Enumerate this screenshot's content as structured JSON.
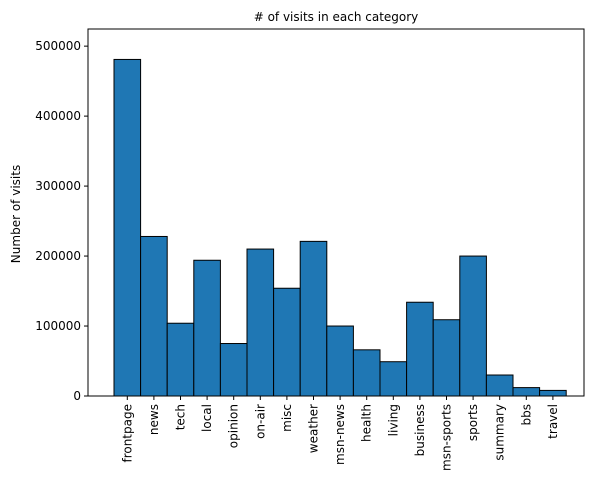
{
  "chart_data": {
    "type": "bar",
    "title": "# of visits in each category",
    "xlabel": "",
    "ylabel": "Number of visits",
    "categories": [
      "frontpage",
      "news",
      "tech",
      "local",
      "opinion",
      "on-air",
      "misc",
      "weather",
      "msn-news",
      "health",
      "living",
      "business",
      "msn-sports",
      "sports",
      "summary",
      "bbs",
      "travel"
    ],
    "values": [
      481000,
      228000,
      104000,
      194000,
      75000,
      210000,
      154000,
      221000,
      100000,
      66000,
      49000,
      134000,
      109000,
      200000,
      30000,
      12000,
      8000
    ],
    "ylim": [
      0,
      500000
    ],
    "yticks": [
      0,
      100000,
      200000,
      300000,
      400000,
      500000
    ],
    "grid": false,
    "bar_color": "#1f77b4",
    "edge_color": "#000000"
  }
}
